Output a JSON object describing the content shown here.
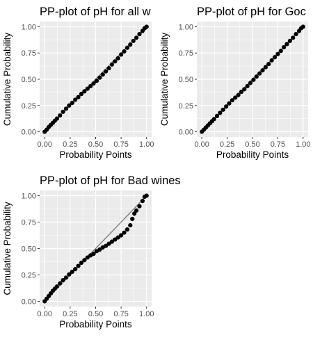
{
  "chart_data": [
    {
      "type": "scatter",
      "title": "PP-plot of pH for all w",
      "xlabel": "Probability Points",
      "ylabel": "Cumulative Probability",
      "xlim": [
        0,
        1
      ],
      "ylim": [
        0,
        1
      ],
      "x_ticks": [
        "0.00",
        "0.25",
        "0.50",
        "0.75",
        "1.00"
      ],
      "y_ticks": [
        "0.00",
        "0.25",
        "0.50",
        "0.75",
        "1.00"
      ],
      "grid": true,
      "background": "#ebebeb",
      "point_color": "#000000",
      "reference_line_color": "#7f7f7f",
      "reference_line": [
        [
          0,
          0
        ],
        [
          1,
          1
        ]
      ],
      "points": [
        [
          0.0,
          0.0
        ],
        [
          0.02,
          0.02
        ],
        [
          0.04,
          0.045
        ],
        [
          0.06,
          0.065
        ],
        [
          0.08,
          0.085
        ],
        [
          0.1,
          0.105
        ],
        [
          0.12,
          0.125
        ],
        [
          0.15,
          0.155
        ],
        [
          0.18,
          0.19
        ],
        [
          0.21,
          0.22
        ],
        [
          0.24,
          0.25
        ],
        [
          0.27,
          0.275
        ],
        [
          0.3,
          0.305
        ],
        [
          0.33,
          0.33
        ],
        [
          0.36,
          0.36
        ],
        [
          0.39,
          0.385
        ],
        [
          0.42,
          0.41
        ],
        [
          0.45,
          0.435
        ],
        [
          0.48,
          0.46
        ],
        [
          0.51,
          0.485
        ],
        [
          0.54,
          0.515
        ],
        [
          0.57,
          0.545
        ],
        [
          0.6,
          0.575
        ],
        [
          0.63,
          0.605
        ],
        [
          0.66,
          0.64
        ],
        [
          0.69,
          0.67
        ],
        [
          0.72,
          0.7
        ],
        [
          0.75,
          0.735
        ],
        [
          0.78,
          0.765
        ],
        [
          0.81,
          0.8
        ],
        [
          0.84,
          0.83
        ],
        [
          0.87,
          0.865
        ],
        [
          0.9,
          0.895
        ],
        [
          0.93,
          0.93
        ],
        [
          0.96,
          0.96
        ],
        [
          0.98,
          0.985
        ],
        [
          1.0,
          1.0
        ]
      ]
    },
    {
      "type": "scatter",
      "title": "PP-plot of pH for Goc",
      "xlabel": "Probability Points",
      "ylabel": "Cumulative Probability",
      "xlim": [
        0,
        1
      ],
      "ylim": [
        0,
        1
      ],
      "x_ticks": [
        "0.00",
        "0.25",
        "0.50",
        "0.75",
        "1.00"
      ],
      "y_ticks": [
        "0.00",
        "0.25",
        "0.50",
        "0.75",
        "1.00"
      ],
      "grid": true,
      "background": "#ebebeb",
      "point_color": "#000000",
      "reference_line_color": "#7f7f7f",
      "reference_line": [
        [
          0,
          0
        ],
        [
          1,
          1
        ]
      ],
      "points": [
        [
          0.0,
          0.0
        ],
        [
          0.02,
          0.02
        ],
        [
          0.04,
          0.04
        ],
        [
          0.06,
          0.06
        ],
        [
          0.08,
          0.08
        ],
        [
          0.1,
          0.1
        ],
        [
          0.12,
          0.12
        ],
        [
          0.15,
          0.15
        ],
        [
          0.18,
          0.18
        ],
        [
          0.21,
          0.21
        ],
        [
          0.24,
          0.24
        ],
        [
          0.27,
          0.27
        ],
        [
          0.3,
          0.3
        ],
        [
          0.33,
          0.325
        ],
        [
          0.36,
          0.35
        ],
        [
          0.39,
          0.38
        ],
        [
          0.42,
          0.405
        ],
        [
          0.45,
          0.435
        ],
        [
          0.48,
          0.465
        ],
        [
          0.51,
          0.495
        ],
        [
          0.54,
          0.525
        ],
        [
          0.57,
          0.555
        ],
        [
          0.6,
          0.585
        ],
        [
          0.63,
          0.615
        ],
        [
          0.66,
          0.645
        ],
        [
          0.69,
          0.68
        ],
        [
          0.72,
          0.71
        ],
        [
          0.75,
          0.74
        ],
        [
          0.78,
          0.77
        ],
        [
          0.81,
          0.805
        ],
        [
          0.84,
          0.835
        ],
        [
          0.87,
          0.865
        ],
        [
          0.9,
          0.895
        ],
        [
          0.93,
          0.93
        ],
        [
          0.96,
          0.96
        ],
        [
          0.98,
          0.985
        ],
        [
          1.0,
          1.0
        ]
      ]
    },
    {
      "type": "scatter",
      "title": "PP-plot of pH for Bad wines",
      "xlabel": "Probability Points",
      "ylabel": "Cumulative Probability",
      "xlim": [
        0,
        1
      ],
      "ylim": [
        0,
        1
      ],
      "x_ticks": [
        "0.00",
        "0.25",
        "0.50",
        "0.75",
        "1.00"
      ],
      "y_ticks": [
        "0.00",
        "0.25",
        "0.50",
        "0.75",
        "1.00"
      ],
      "grid": true,
      "background": "#ebebeb",
      "point_color": "#000000",
      "reference_line_color": "#7f7f7f",
      "reference_line": [
        [
          0,
          0
        ],
        [
          1,
          1
        ]
      ],
      "points": [
        [
          0.0,
          0.0
        ],
        [
          0.02,
          0.025
        ],
        [
          0.04,
          0.05
        ],
        [
          0.06,
          0.075
        ],
        [
          0.08,
          0.1
        ],
        [
          0.1,
          0.12
        ],
        [
          0.12,
          0.14
        ],
        [
          0.15,
          0.17
        ],
        [
          0.18,
          0.2
        ],
        [
          0.21,
          0.225
        ],
        [
          0.24,
          0.255
        ],
        [
          0.27,
          0.28
        ],
        [
          0.3,
          0.305
        ],
        [
          0.33,
          0.335
        ],
        [
          0.36,
          0.365
        ],
        [
          0.39,
          0.39
        ],
        [
          0.42,
          0.415
        ],
        [
          0.45,
          0.435
        ],
        [
          0.48,
          0.45
        ],
        [
          0.51,
          0.475
        ],
        [
          0.54,
          0.49
        ],
        [
          0.57,
          0.51
        ],
        [
          0.6,
          0.525
        ],
        [
          0.63,
          0.545
        ],
        [
          0.66,
          0.565
        ],
        [
          0.69,
          0.585
        ],
        [
          0.72,
          0.605
        ],
        [
          0.75,
          0.625
        ],
        [
          0.78,
          0.65
        ],
        [
          0.81,
          0.68
        ],
        [
          0.84,
          0.72
        ],
        [
          0.86,
          0.78
        ],
        [
          0.88,
          0.83
        ],
        [
          0.9,
          0.86
        ],
        [
          0.93,
          0.9
        ],
        [
          0.96,
          0.95
        ],
        [
          0.98,
          0.99
        ],
        [
          1.0,
          1.0
        ]
      ]
    }
  ]
}
